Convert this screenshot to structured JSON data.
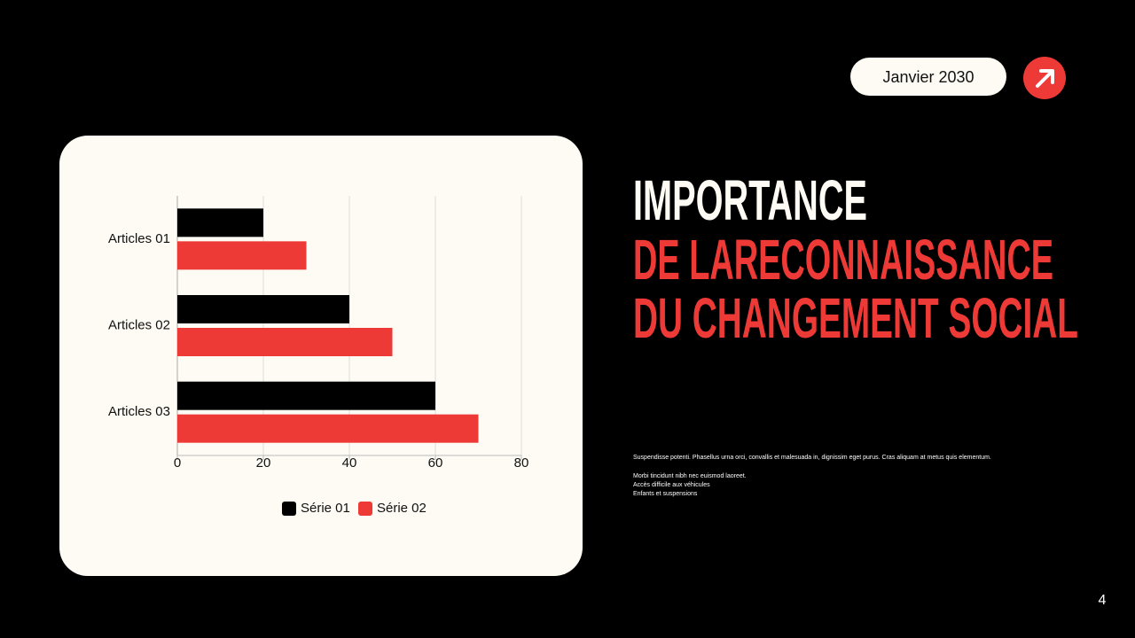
{
  "header": {
    "date": "Janvier 2030"
  },
  "title": {
    "lines": [
      "IMPORTANCE",
      "DE LARECONNAISSANCE",
      "DU CHANGEMENT SOCIAL"
    ]
  },
  "body": {
    "paragraph": "Suspendisse potenti. Phasellus urna orci, convallis et malesuada in, dignissim eget purus. Cras aliquam at metus quis elementum.",
    "list": [
      "Morbi tincidunt nibh nec euismod laoreet.",
      "Accès difficile aux véhicules",
      "Enfants et suspensions"
    ]
  },
  "page_number": "4",
  "chart_data": {
    "type": "bar",
    "orientation": "horizontal",
    "categories": [
      "Articles 01",
      "Articles 02",
      "Articles 03"
    ],
    "series": [
      {
        "name": "Série 01",
        "color": "#000000",
        "values": [
          20,
          40,
          60
        ]
      },
      {
        "name": "Série 02",
        "color": "#ee3a36",
        "values": [
          30,
          50,
          70
        ]
      }
    ],
    "xlim": [
      0,
      80
    ],
    "xticks": [
      0,
      20,
      40,
      60,
      80
    ],
    "grid": true,
    "legend": "bottom"
  }
}
